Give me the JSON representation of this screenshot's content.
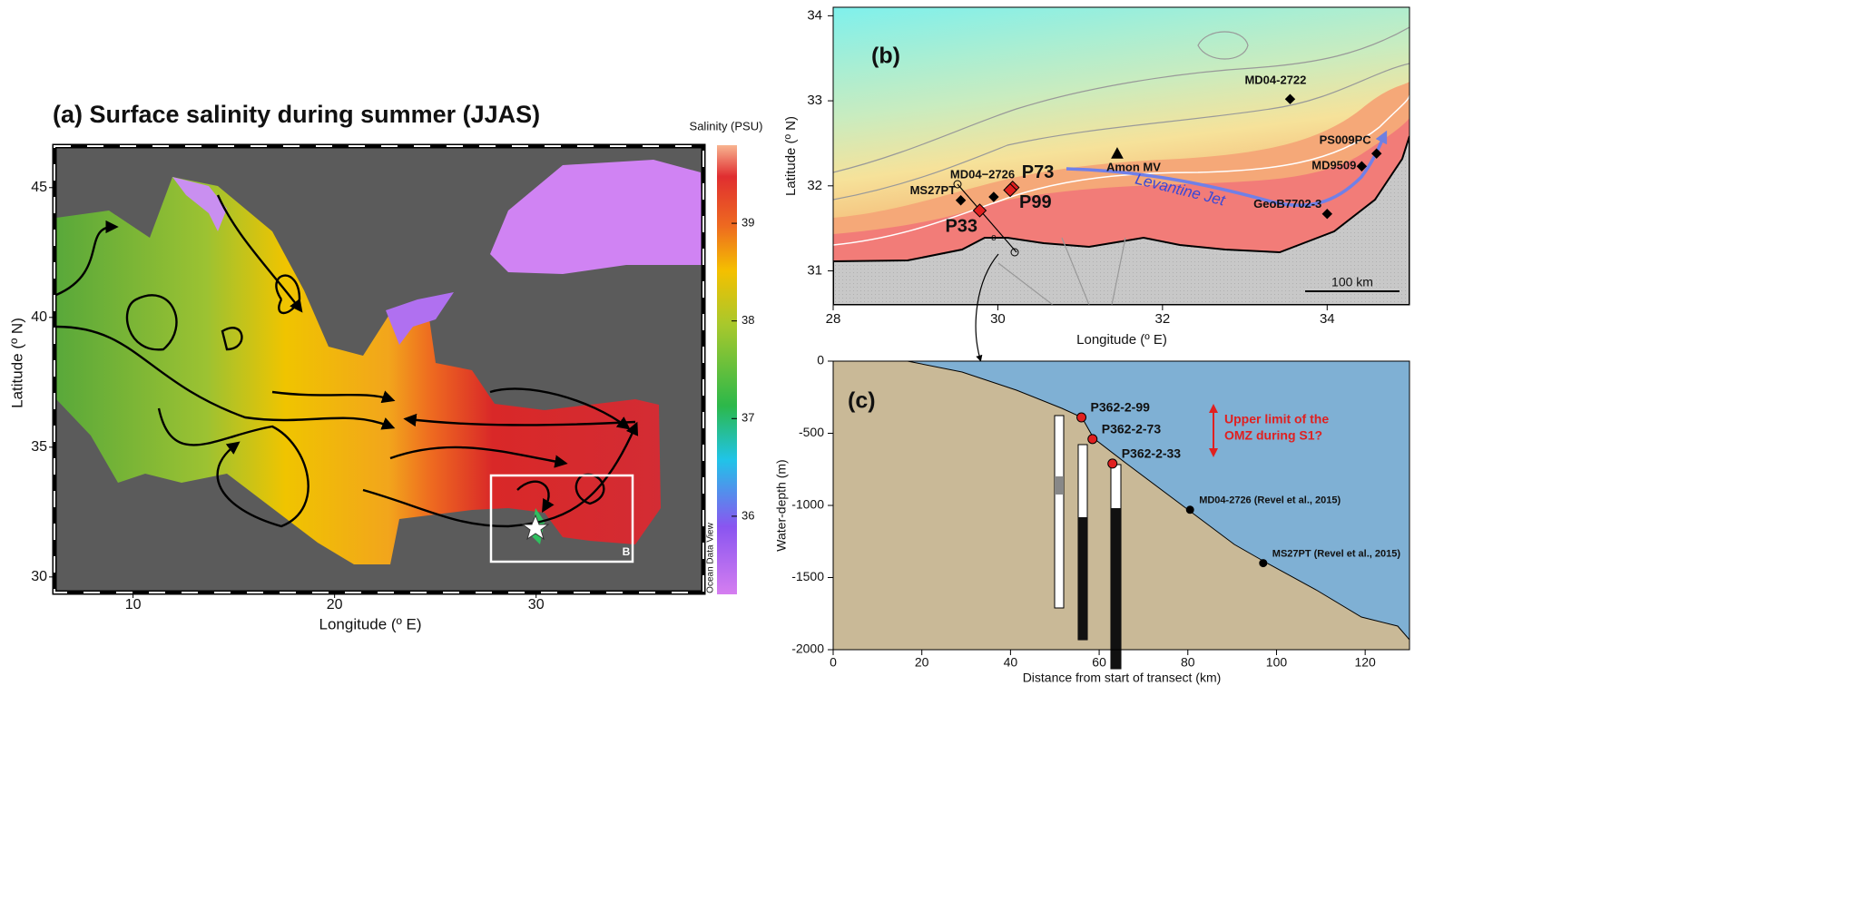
{
  "panel_a": {
    "title": "(a) Surface salinity during summer (JJAS)",
    "xlabel": "Longitude (º E)",
    "ylabel": "Latitude (º N)",
    "xlim": [
      6.1,
      38.3
    ],
    "ylim": [
      29.4,
      46.6
    ],
    "xticks": [
      10,
      20,
      30
    ],
    "yticks": [
      30,
      35,
      40,
      45
    ],
    "colorbar": {
      "label": "Salinity (PSU)",
      "lim": [
        35.2,
        39.8
      ],
      "ticks": [
        36,
        37,
        38,
        39
      ]
    },
    "credit": "Ocean Data View",
    "box_label": "B"
  },
  "panel_b": {
    "label": "(b)",
    "xlabel": "Longitude (º E)",
    "ylabel": "Latitude (º N)",
    "xlim": [
      28,
      35
    ],
    "ylim": [
      30.6,
      34.1
    ],
    "xticks": [
      28,
      30,
      32,
      34
    ],
    "yticks": [
      31,
      32,
      33,
      34
    ],
    "scale_bar": "100 km",
    "jet_label": "Levantine Jet",
    "transect_label": "c",
    "sites": [
      {
        "name": "MD04-2722",
        "lon": 33.55,
        "lat": 33.02
      },
      {
        "name": "PS009PC",
        "lon": 34.6,
        "lat": 32.38
      },
      {
        "name": "MD9509",
        "lon": 34.42,
        "lat": 32.23
      },
      {
        "name": "GeoB7702-3",
        "lon": 34.0,
        "lat": 31.67
      },
      {
        "name": "Amon MV",
        "lon": 31.45,
        "lat": 32.38
      },
      {
        "name": "MD04−2726",
        "lon": 29.95,
        "lat": 31.87
      },
      {
        "name": "MS27PT",
        "lon": 29.55,
        "lat": 31.83
      },
      {
        "name": "P73",
        "lon": 30.18,
        "lat": 31.98
      },
      {
        "name": "P99",
        "lon": 30.15,
        "lat": 31.95
      },
      {
        "name": "P33",
        "lon": 29.78,
        "lat": 31.71
      }
    ]
  },
  "panel_c": {
    "label": "(c)",
    "xlabel": "Distance from start of transect (km)",
    "ylabel": "Water-depth (m)",
    "xlim": [
      0,
      130
    ],
    "ylim": [
      -2000,
      0
    ],
    "xticks": [
      0,
      20,
      40,
      60,
      80,
      100,
      120
    ],
    "yticks": [
      0,
      -500,
      -1000,
      -1500,
      -2000
    ],
    "points": [
      {
        "name": "P362-2-99",
        "x": 56,
        "y": -390
      },
      {
        "name": "P362-2-73",
        "x": 58.5,
        "y": -540
      },
      {
        "name": "P362-2-33",
        "x": 63,
        "y": -710
      },
      {
        "name": "MD04-2726 (Revel et al., 2015)",
        "x": 80.5,
        "y": -1030
      },
      {
        "name": "MS27PT (Revel et al., 2015)",
        "x": 97,
        "y": -1400
      }
    ],
    "annotation_lines": [
      "Upper limit of the",
      "OMZ during S1?"
    ]
  }
}
